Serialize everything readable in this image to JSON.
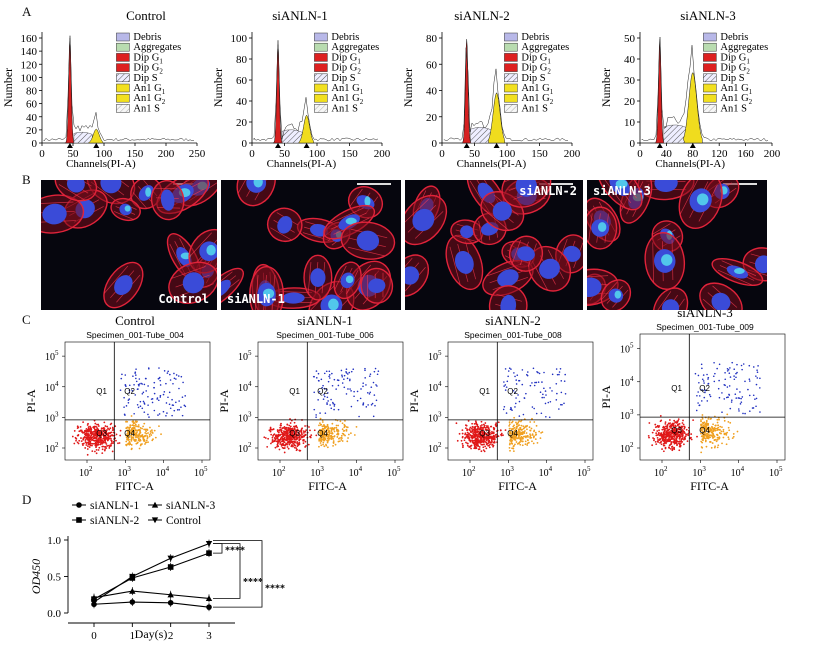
{
  "panels": {
    "A": "A",
    "B": "B",
    "C": "C",
    "D": "D"
  },
  "panelA": {
    "legend": [
      "Debris",
      "Aggregates",
      "Dip G",
      "Dip G",
      "Dip S",
      "An1 G",
      "An1 G",
      "An1 S"
    ],
    "legend_subs": [
      "",
      "",
      "1",
      "2",
      "",
      "1",
      "2",
      ""
    ],
    "legend_colors": [
      "#b8b8e8",
      "#b9dcb0",
      "#dd2020",
      "#dd2020",
      "hatch",
      "#f2e020",
      "#f2e020",
      "hatchlight"
    ],
    "ylabel": "Number",
    "xlabel": "Channels(PI-A)",
    "charts": [
      {
        "title": "Control",
        "yticks": [
          "0",
          "20",
          "40",
          "60",
          "80",
          "100",
          "120",
          "140",
          "160"
        ],
        "xticks": [
          "0",
          "50",
          "100",
          "150",
          "200",
          "250"
        ]
      },
      {
        "title": "siANLN-1",
        "yticks": [
          "0",
          "20",
          "40",
          "60",
          "80",
          "100"
        ],
        "xticks": [
          "0",
          "50",
          "100",
          "150",
          "200"
        ]
      },
      {
        "title": "siANLN-2",
        "yticks": [
          "0",
          "20",
          "40",
          "60",
          "80"
        ],
        "xticks": [
          "0",
          "50",
          "100",
          "150",
          "200"
        ]
      },
      {
        "title": "siANLN-3",
        "yticks": [
          "0",
          "10",
          "20",
          "30",
          "40",
          "50"
        ],
        "xticks": [
          "0",
          "40",
          "80",
          "120",
          "160",
          "200"
        ]
      }
    ]
  },
  "panelB": {
    "labels": [
      "Control",
      "siANLN-1",
      "siANLN-2",
      "siANLN-3"
    ]
  },
  "panelC": {
    "xlabel": "FITC-A",
    "ylabel": "PI-A",
    "quadrants": [
      "Q1",
      "Q2",
      "Q3",
      "Q4"
    ],
    "ticks": [
      "10",
      "2",
      "3",
      "4",
      "5"
    ],
    "plots": [
      {
        "title": "Control",
        "specimen": "Specimen_001-Tube_004"
      },
      {
        "title": "siANLN-1",
        "specimen": "Specimen_001-Tube_006"
      },
      {
        "title": "siANLN-2",
        "specimen": "Specimen_001-Tube_008"
      },
      {
        "title": "siANLN-3",
        "specimen": "Specimen_001-Tube_009"
      }
    ]
  },
  "chart_data": [
    {
      "type": "line",
      "title": "",
      "xlabel": "Day(s)",
      "ylabel": "OD450",
      "x": [
        0,
        1,
        2,
        3
      ],
      "ylim": [
        0,
        1.0
      ],
      "yticks": [
        "0.0",
        "0.5",
        "1.0"
      ],
      "xticks": [
        "0",
        "1",
        "2",
        "3"
      ],
      "series": [
        {
          "name": "siANLN-1",
          "marker": "circle",
          "values": [
            0.12,
            0.15,
            0.14,
            0.08
          ]
        },
        {
          "name": "siANLN-2",
          "marker": "square",
          "values": [
            0.19,
            0.48,
            0.63,
            0.82
          ]
        },
        {
          "name": "siANLN-3",
          "marker": "triangle-up",
          "values": [
            0.21,
            0.3,
            0.25,
            0.2
          ]
        },
        {
          "name": "Control",
          "marker": "triangle-down",
          "values": [
            0.15,
            0.5,
            0.75,
            0.95
          ]
        }
      ],
      "annotations": [
        "****",
        "****",
        "****"
      ]
    }
  ]
}
